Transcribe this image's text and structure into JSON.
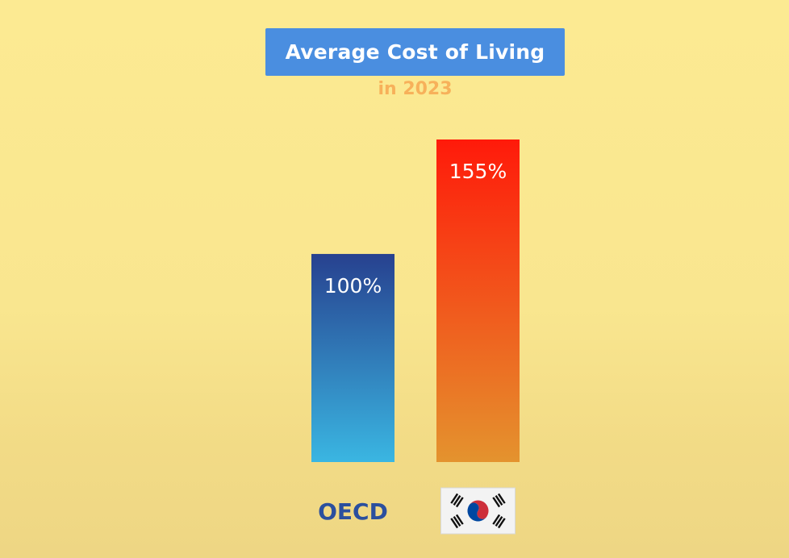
{
  "chart_data": {
    "type": "bar",
    "title": "Average Cost of Living",
    "subtitle": "in 2023",
    "categories": [
      "OECD",
      "South Korea"
    ],
    "values": [
      100,
      155
    ],
    "value_labels": [
      "100%",
      "155%"
    ],
    "category_display": [
      "OECD",
      ""
    ],
    "category_flag_icons": [
      "",
      "korea-flag-icon"
    ],
    "ylim": [
      0,
      155
    ],
    "grid": false,
    "legend": "none",
    "bar_gradients": [
      {
        "top": "#27418f",
        "bottom": "#3ab6e2"
      },
      {
        "top": "#ff1a0a",
        "bottom": "#e4932e"
      }
    ],
    "colors": {
      "title_bg": "#4a8ee0",
      "subtitle": "#f7b15a",
      "category_text": "#2b4f9e"
    }
  }
}
